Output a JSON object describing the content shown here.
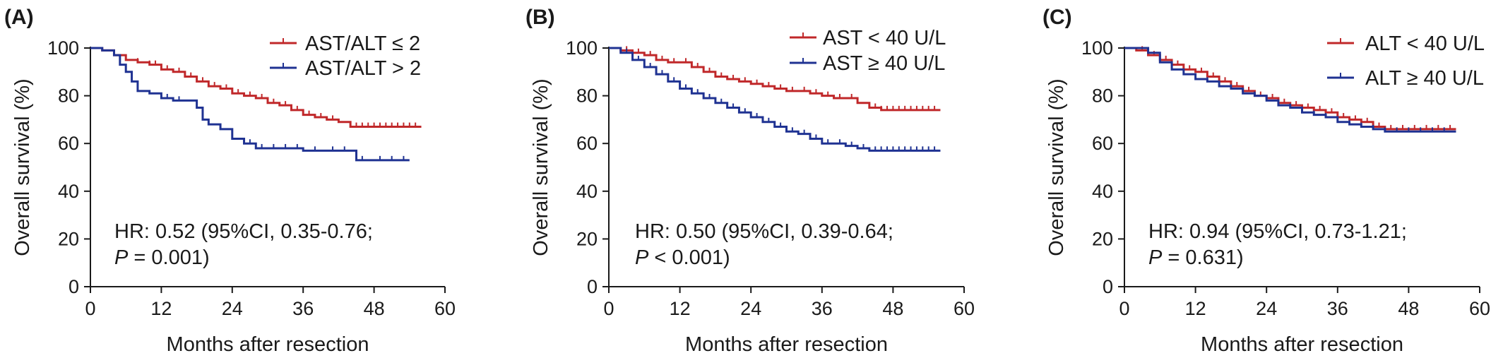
{
  "figure": {
    "colors": {
      "red": "#c0282a",
      "blue": "#1f3292",
      "axis": "#1a1a1a"
    }
  },
  "chart_data": [
    {
      "type": "line",
      "panel": "(A)",
      "xlabel": "Months after resection",
      "ylabel": "Overall survival (%)",
      "xlim": [
        0,
        60
      ],
      "ylim": [
        0,
        100
      ],
      "xticks": [
        0,
        12,
        24,
        36,
        48,
        60
      ],
      "yticks": [
        0,
        20,
        40,
        60,
        80,
        100
      ],
      "xtick_labels": [
        "0",
        "12",
        "24",
        "36",
        "48",
        "60"
      ],
      "ytick_labels": [
        "0",
        "20",
        "40",
        "60",
        "80",
        "100"
      ],
      "grid": false,
      "legend": "top-right",
      "hr_line1": "HR: 0.52 (95%CI, 0.35-0.76;",
      "p_symbol": "P",
      "p_value": " = 0.001)",
      "series": [
        {
          "name": "AST/ALT ≤ 2",
          "color": "#c0282a",
          "x": [
            0,
            2,
            4,
            6,
            8,
            10,
            12,
            14,
            16,
            18,
            20,
            22,
            24,
            26,
            28,
            30,
            32,
            34,
            36,
            38,
            40,
            42,
            44,
            46,
            48,
            50,
            52,
            54,
            56
          ],
          "y": [
            100,
            99,
            97,
            95,
            94,
            93,
            91,
            90,
            88,
            86,
            84,
            83,
            81,
            80,
            79,
            77,
            76,
            74,
            72,
            71,
            70,
            69,
            67,
            67,
            67,
            67,
            67,
            67,
            67
          ],
          "censors": [
            4,
            6,
            8,
            10,
            11,
            13,
            15,
            17,
            19,
            21,
            23,
            25,
            27,
            29,
            31,
            33,
            35,
            37,
            39,
            41,
            44,
            45,
            46,
            47,
            48,
            49,
            50,
            51,
            52,
            53,
            54,
            55
          ]
        },
        {
          "name": "AST/ALT > 2",
          "color": "#1f3292",
          "x": [
            0,
            2,
            4,
            5,
            6,
            7,
            8,
            10,
            12,
            14,
            16,
            18,
            19,
            20,
            22,
            24,
            26,
            28,
            30,
            34,
            36,
            40,
            44,
            45,
            48,
            52,
            54
          ],
          "y": [
            100,
            99,
            97,
            93,
            90,
            86,
            82,
            81,
            79,
            78,
            78,
            75,
            70,
            68,
            66,
            62,
            60,
            58,
            58,
            58,
            57,
            57,
            57,
            53,
            53,
            53,
            53
          ],
          "censors": [
            13,
            15,
            27,
            29,
            31,
            33,
            35,
            38,
            41,
            43,
            46,
            49,
            51,
            53
          ]
        }
      ]
    },
    {
      "type": "line",
      "panel": "(B)",
      "xlabel": "Months after resection",
      "ylabel": "Overall survival (%)",
      "xlim": [
        0,
        60
      ],
      "ylim": [
        0,
        100
      ],
      "xticks": [
        0,
        12,
        24,
        36,
        48,
        60
      ],
      "yticks": [
        0,
        20,
        40,
        60,
        80,
        100
      ],
      "xtick_labels": [
        "0",
        "12",
        "24",
        "36",
        "48",
        "60"
      ],
      "ytick_labels": [
        "0",
        "20",
        "40",
        "60",
        "80",
        "100"
      ],
      "grid": false,
      "legend": "top-right",
      "hr_line1": "HR: 0.50 (95%CI, 0.39-0.64;",
      "p_symbol": "P",
      "p_value": " < 0.001)",
      "series": [
        {
          "name": "AST < 40 U/L",
          "color": "#c0282a",
          "x": [
            0,
            2,
            4,
            6,
            8,
            10,
            12,
            14,
            16,
            18,
            20,
            22,
            24,
            26,
            28,
            30,
            32,
            34,
            36,
            38,
            40,
            42,
            44,
            46,
            48,
            50,
            52,
            56
          ],
          "y": [
            100,
            99,
            98,
            97,
            95,
            94,
            94,
            92,
            90,
            88,
            87,
            86,
            85,
            84,
            83,
            82,
            82,
            81,
            80,
            79,
            79,
            77,
            75,
            74,
            74,
            74,
            74,
            74
          ],
          "censors": [
            3,
            5,
            7,
            9,
            11,
            13,
            15,
            17,
            19,
            21,
            23,
            25,
            27,
            29,
            31,
            33,
            35,
            37,
            39,
            41,
            44,
            45,
            46,
            47,
            48,
            49,
            50,
            51,
            52,
            53,
            54,
            55
          ]
        },
        {
          "name": "AST ≥ 40 U/L",
          "color": "#1f3292",
          "x": [
            0,
            2,
            4,
            6,
            8,
            10,
            12,
            14,
            16,
            18,
            20,
            22,
            24,
            26,
            28,
            30,
            32,
            34,
            36,
            38,
            40,
            42,
            44,
            46,
            48,
            50,
            52,
            56
          ],
          "y": [
            100,
            98,
            95,
            92,
            89,
            86,
            83,
            81,
            79,
            77,
            75,
            73,
            71,
            69,
            67,
            65,
            64,
            62,
            60,
            60,
            59,
            58,
            57,
            57,
            57,
            57,
            57,
            57
          ],
          "censors": [
            3,
            5,
            7,
            9,
            11,
            13,
            15,
            17,
            19,
            21,
            23,
            25,
            27,
            29,
            31,
            33,
            35,
            37,
            39,
            41,
            43,
            45,
            46,
            47,
            48,
            49,
            50,
            51,
            52,
            53,
            54,
            55
          ]
        }
      ]
    },
    {
      "type": "line",
      "panel": "(C)",
      "xlabel": "Months after resection",
      "ylabel": "Overall survival (%)",
      "xlim": [
        0,
        60
      ],
      "ylim": [
        0,
        100
      ],
      "xticks": [
        0,
        12,
        24,
        36,
        48,
        60
      ],
      "yticks": [
        0,
        20,
        40,
        60,
        80,
        100
      ],
      "xtick_labels": [
        "0",
        "12",
        "24",
        "36",
        "48",
        "60"
      ],
      "ytick_labels": [
        "0",
        "20",
        "40",
        "60",
        "80",
        "100"
      ],
      "grid": false,
      "legend": "top-right",
      "hr_line1": "HR: 0.94 (95%CI, 0.73-1.21;",
      "p_symbol": "P",
      "p_value": " = 0.631)",
      "series": [
        {
          "name": "ALT < 40 U/L",
          "color": "#c0282a",
          "x": [
            0,
            2,
            4,
            6,
            8,
            10,
            12,
            14,
            16,
            18,
            20,
            22,
            24,
            26,
            28,
            30,
            32,
            34,
            36,
            38,
            40,
            42,
            44,
            46,
            48,
            50,
            52,
            56
          ],
          "y": [
            100,
            99,
            97,
            95,
            93,
            91,
            90,
            88,
            86,
            84,
            82,
            80,
            79,
            77,
            76,
            75,
            74,
            73,
            71,
            70,
            69,
            67,
            66,
            66,
            66,
            66,
            66,
            66
          ],
          "censors": [
            3,
            5,
            7,
            9,
            11,
            13,
            15,
            17,
            19,
            21,
            23,
            25,
            27,
            29,
            31,
            33,
            35,
            37,
            39,
            41,
            43,
            45,
            47,
            49,
            51,
            53,
            55
          ]
        },
        {
          "name": "ALT ≥ 40 U/L",
          "color": "#1f3292",
          "x": [
            0,
            2,
            4,
            6,
            8,
            10,
            12,
            14,
            16,
            18,
            20,
            22,
            24,
            26,
            28,
            30,
            32,
            34,
            36,
            38,
            40,
            42,
            44,
            46,
            48,
            50,
            52,
            56
          ],
          "y": [
            100,
            100,
            98,
            94,
            91,
            89,
            87,
            86,
            84,
            83,
            81,
            80,
            78,
            76,
            75,
            73,
            72,
            71,
            69,
            68,
            67,
            66,
            65,
            65,
            65,
            65,
            65,
            65
          ],
          "censors": [
            4,
            6,
            8,
            10,
            12,
            14,
            16,
            18,
            20,
            22,
            24,
            26,
            28,
            30,
            32,
            34,
            36,
            38,
            40,
            42,
            44,
            46,
            48,
            50,
            52,
            54
          ]
        }
      ]
    }
  ]
}
